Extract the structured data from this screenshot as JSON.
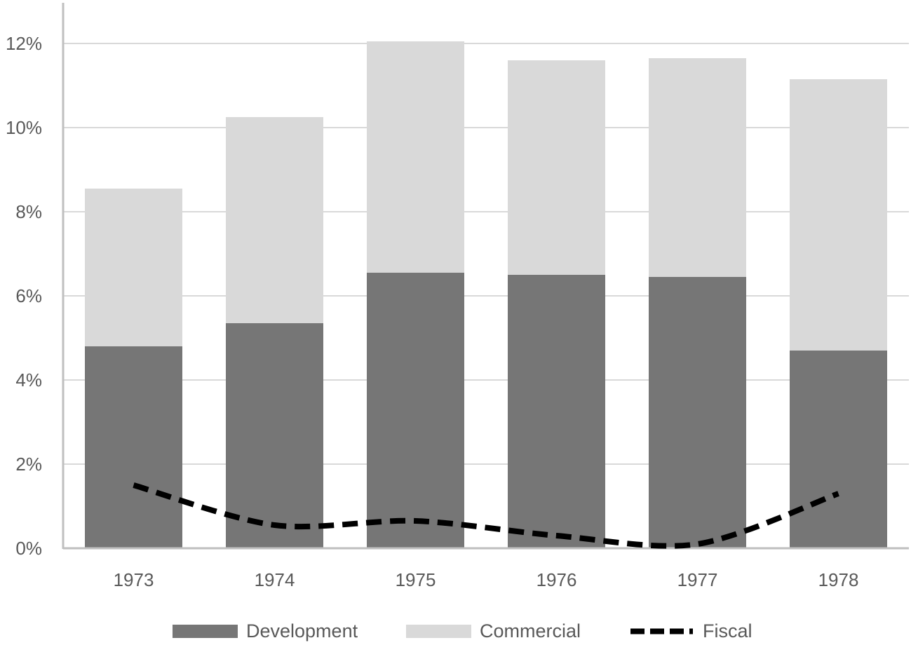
{
  "chart_data": {
    "type": "bar",
    "stacked": true,
    "categories": [
      "1973",
      "1974",
      "1975",
      "1976",
      "1977",
      "1978"
    ],
    "series": [
      {
        "name": "Development",
        "kind": "bar",
        "color": "#767676",
        "values": [
          4.8,
          5.35,
          6.55,
          6.5,
          6.45,
          4.7
        ]
      },
      {
        "name": "Commercial",
        "kind": "bar",
        "color": "#d9d9d9",
        "values": [
          3.75,
          4.9,
          5.5,
          5.1,
          5.2,
          6.45
        ]
      },
      {
        "name": "Fiscal",
        "kind": "line",
        "style": "dashed",
        "color": "#000000",
        "values": [
          1.5,
          0.55,
          0.65,
          0.3,
          0.1,
          1.3
        ]
      }
    ],
    "ylim": [
      0,
      12
    ],
    "yticks": [
      "0%",
      "2%",
      "4%",
      "6%",
      "8%",
      "10%",
      "12%"
    ],
    "ytick_values": [
      0,
      2,
      4,
      6,
      8,
      10,
      12
    ],
    "grid": true,
    "legend_position": "bottom",
    "title": "",
    "xlabel": "",
    "ylabel": ""
  }
}
